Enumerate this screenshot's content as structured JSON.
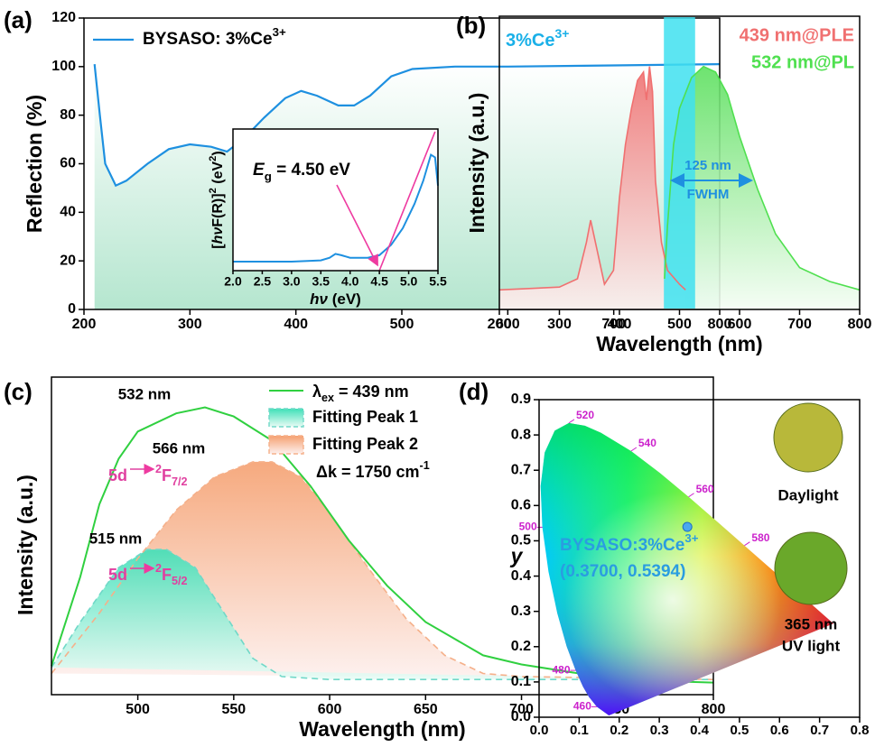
{
  "chart_data": [
    {
      "type": "line",
      "panel_label": "(a)",
      "ylabel": "Reflection (%)",
      "xlim": [
        200,
        800
      ],
      "ylim": [
        0,
        120
      ],
      "xticks": [
        200,
        300,
        400,
        500,
        600,
        700,
        800
      ],
      "yticks": [
        0,
        20,
        40,
        60,
        80,
        100,
        120
      ],
      "legend": "upper left",
      "series": [
        {
          "name": "BYSASO: 3%Ce",
          "name_sup": "3+",
          "color": "#1e90e0",
          "x": [
            210,
            215,
            220,
            230,
            240,
            260,
            280,
            300,
            320,
            335,
            350,
            370,
            390,
            405,
            420,
            440,
            455,
            470,
            490,
            510,
            550,
            600,
            700,
            800
          ],
          "y": [
            101,
            80,
            60,
            51,
            53,
            60,
            66,
            68,
            67,
            65,
            70,
            79,
            87,
            90,
            88,
            84,
            84,
            88,
            96,
            99,
            100,
            100,
            100.5,
            101
          ]
        }
      ],
      "inset": {
        "xlim": [
          2.0,
          5.5
        ],
        "ylim": [
          0,
          1.1
        ],
        "xticks": [
          {
            "value": 2,
            "label": "2.0"
          },
          2.5,
          {
            "value": 3,
            "label": "3.0"
          },
          3.5,
          {
            "value": 4,
            "label": "4.0"
          },
          4.5,
          {
            "value": 5,
            "label": "5.0"
          },
          5.5
        ],
        "xlabel": [
          "hν",
          " (eV)"
        ],
        "ylabel": [
          "[",
          "hν",
          "F(R)]",
          "2",
          " (eV",
          "2",
          ")"
        ],
        "series": [
          {
            "color": "#1e90e0",
            "x": [
              2.0,
              2.5,
              3.0,
              3.5,
              3.65,
              3.75,
              3.85,
              4.0,
              4.3,
              4.5,
              4.7,
              4.9,
              5.1,
              5.25,
              5.38,
              5.45,
              5.5
            ],
            "y": [
              0.07,
              0.07,
              0.07,
              0.08,
              0.1,
              0.13,
              0.12,
              0.1,
              0.1,
              0.12,
              0.2,
              0.33,
              0.52,
              0.7,
              0.9,
              0.88,
              0.66
            ]
          }
        ],
        "tangent": {
          "color": "#ee3aa0",
          "x": [
            4.5,
            5.45
          ],
          "y": [
            0,
            1.08
          ]
        },
        "annotation": [
          "E",
          "g",
          " = 4.50 eV"
        ]
      }
    },
    {
      "type": "line",
      "panel_label": "(b)",
      "xlabel": "Wavelength (nm)",
      "ylabel": "Intensity (a.u.)",
      "xlim": [
        200,
        800
      ],
      "ylim": [
        0,
        105
      ],
      "xticks": [
        200,
        300,
        400,
        500,
        600,
        700,
        800
      ],
      "band": [
        474,
        526
      ],
      "band_color": "#3fe0f0",
      "texts": {
        "sample": [
          "3%Ce",
          "3+"
        ],
        "ple": "439 nm@PLE",
        "pl": "532 nm@PL",
        "width": "125 nm",
        "fwhm": "FWHM"
      },
      "series": [
        {
          "name": "439 nm@PLE",
          "color": "#f07070",
          "x": [
            200,
            250,
            300,
            330,
            345,
            352,
            360,
            375,
            390,
            400,
            410,
            420,
            430,
            440,
            445,
            450,
            455,
            460,
            470,
            480,
            500,
            510
          ],
          "y": [
            7,
            7.5,
            8,
            11,
            24,
            32,
            24,
            9,
            14,
            40,
            59,
            72,
            82,
            85,
            75,
            87,
            78,
            46,
            24,
            14,
            9,
            7
          ]
        },
        {
          "name": "532 nm@PL",
          "color": "#50e050",
          "x": [
            475,
            480,
            490,
            500,
            520,
            540,
            560,
            580,
            600,
            630,
            660,
            700,
            750,
            800
          ],
          "y": [
            11,
            30,
            59,
            72,
            83,
            87,
            85,
            77,
            62,
            43,
            27,
            15,
            10,
            7
          ]
        }
      ]
    },
    {
      "type": "line",
      "panel_label": "(c)",
      "xlabel": "Wavelength (nm)",
      "ylabel": "Intensity (a.u.)",
      "xlim": [
        455,
        800
      ],
      "ylim": [
        0,
        105
      ],
      "xticks": [
        500,
        550,
        600,
        650,
        700,
        750,
        800
      ],
      "texts": {
        "p532": "532 nm",
        "p566": "566 nm",
        "p515": "515 nm",
        "shift": [
          "Δk = 1750 cm",
          "-1"
        ],
        "t1": [
          "5d",
          "2",
          "F",
          "7/2"
        ],
        "t2": [
          "5d",
          "2",
          "F",
          "5/2"
        ]
      },
      "series": [
        {
          "name": "λ",
          "name_sub": "ex",
          "name_rest": " = 439 nm",
          "color": "#30d040",
          "x": [
            455,
            470,
            480,
            490,
            500,
            520,
            535,
            550,
            570,
            590,
            610,
            630,
            650,
            680,
            700,
            750,
            800
          ],
          "y": [
            9.5,
            39,
            63,
            78,
            87,
            93,
            95,
            92,
            84,
            69,
            51,
            36,
            24,
            13,
            10,
            5,
            4
          ]
        },
        {
          "name": "Fitting Peak 1",
          "color": "#70d8c8",
          "fill": "#3fe0b8",
          "x": [
            455,
            470,
            490,
            505,
            515,
            530,
            545,
            560,
            575,
            600,
            800
          ],
          "y": [
            9,
            24,
            42,
            48,
            48,
            42,
            27,
            12,
            6,
            5,
            5
          ]
        },
        {
          "name": "Fitting Peak 2",
          "color": "#f5b08a",
          "fill": "#f5a070",
          "x": [
            455,
            480,
            500,
            520,
            540,
            560,
            570,
            585,
            600,
            620,
            640,
            660,
            680,
            700,
            800
          ],
          "y": [
            7,
            27,
            45,
            61,
            72,
            77,
            77,
            72,
            60,
            42,
            25,
            13,
            7,
            6,
            5
          ]
        }
      ]
    },
    {
      "type": "scatter",
      "panel_label": "(d)",
      "ylabel": "y",
      "xlim": [
        0,
        0.8
      ],
      "ylim": [
        0,
        0.9
      ],
      "xticks": [
        {
          "value": 0,
          "label": "0.0"
        },
        0.1,
        0.2,
        0.3,
        0.4,
        0.5,
        0.6,
        0.7,
        0.8
      ],
      "yticks": [
        {
          "value": 0,
          "label": "0.0"
        },
        0.1,
        0.2,
        0.3,
        0.4,
        0.5,
        0.6,
        0.7,
        0.8,
        0.9
      ],
      "boundary": {
        "wavelength": [
          380,
          460,
          470,
          475,
          480,
          485,
          490,
          495,
          500,
          505,
          510,
          515,
          520,
          525,
          530,
          540,
          550,
          560,
          570,
          580,
          590,
          600,
          620,
          700
        ],
        "x": [
          0.1741,
          0.144,
          0.1241,
          0.1096,
          0.0913,
          0.0687,
          0.0454,
          0.0235,
          0.0082,
          0.0039,
          0.0139,
          0.0389,
          0.0743,
          0.1142,
          0.1547,
          0.2296,
          0.3016,
          0.3731,
          0.4441,
          0.5125,
          0.5752,
          0.627,
          0.6915,
          0.7347
        ],
        "y": [
          0.005,
          0.0297,
          0.0578,
          0.0868,
          0.1327,
          0.2007,
          0.295,
          0.4127,
          0.5384,
          0.6548,
          0.7502,
          0.812,
          0.8338,
          0.8262,
          0.8059,
          0.7543,
          0.6923,
          0.6245,
          0.5547,
          0.4866,
          0.4242,
          0.3725,
          0.3083,
          0.2653
        ]
      },
      "labeled": [
        460,
        480,
        500,
        520,
        540,
        560,
        580
      ],
      "series": [
        {
          "name": "BYSASO:3%Ce",
          "name_sup": "3+",
          "label": "(0.3700, 0.5394)",
          "color": "#4aa8f0",
          "x": [
            0.37
          ],
          "y": [
            0.5394
          ]
        }
      ],
      "photos": [
        {
          "color": "#b8b83a",
          "label": [
            "Daylight"
          ]
        },
        {
          "color": "#6aa82a",
          "label": [
            "365 nm",
            "UV light"
          ]
        }
      ]
    }
  ]
}
